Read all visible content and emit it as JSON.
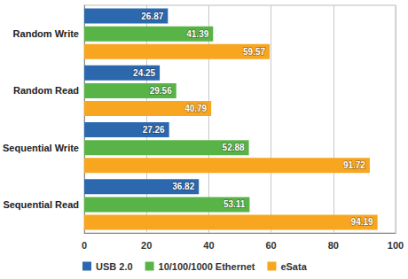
{
  "chart_data": {
    "type": "bar",
    "orientation": "horizontal",
    "categories": [
      "Random Write",
      "Random Read",
      "Sequential Write",
      "Sequential Read"
    ],
    "series": [
      {
        "name": "USB 2.0",
        "color": "#2c68ad",
        "values": [
          26.87,
          24.25,
          27.26,
          36.82
        ]
      },
      {
        "name": "10/100/1000 Ethernet",
        "color": "#58b447",
        "values": [
          41.39,
          29.56,
          52.88,
          53.11
        ]
      },
      {
        "name": "eSata",
        "color": "#f8a51f",
        "values": [
          59.57,
          40.79,
          91.72,
          94.19
        ]
      }
    ],
    "xlim": [
      0,
      100
    ],
    "xticks": [
      0,
      20,
      40,
      60,
      80,
      100
    ],
    "grid": true,
    "legend": "bottom",
    "data_labels": true
  }
}
